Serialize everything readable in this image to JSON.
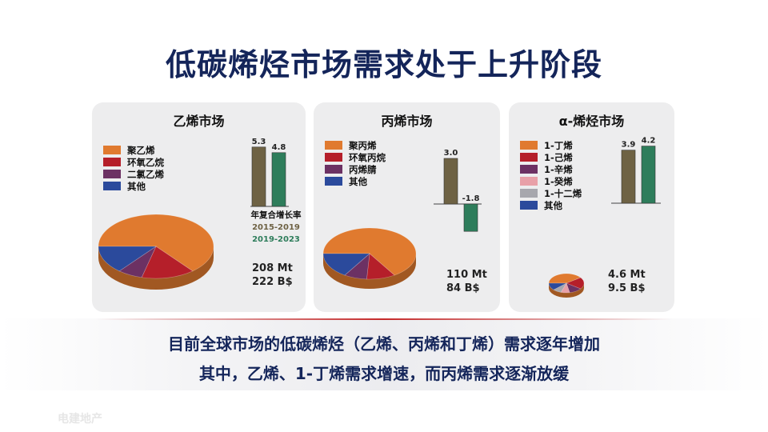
{
  "title": "低碳烯烃市场需求处于上升阶段",
  "summary": {
    "line1": "目前全球市场的低碳烯烃（乙烯、丙烯和丁烯）需求逐年增加",
    "line2": "其中，乙烯、1-丁烯需求增速，而丙烯需求逐渐放缓"
  },
  "watermark": "电建地产",
  "cagr": {
    "title": "年复合增长率",
    "period_a": "2015-2019",
    "period_b": "2019-2023"
  },
  "colors": {
    "period_a": "#6e6244",
    "period_b": "#2e7d5b"
  },
  "chart_data": [
    {
      "type": "pie",
      "title": "乙烯市场",
      "legend": [
        "聚乙烯",
        "环氧乙烷",
        "二氯乙烯",
        "其他"
      ],
      "colors": [
        "#e07a2f",
        "#b51f2a",
        "#6c3163",
        "#2b4a9c"
      ],
      "values": [
        64,
        15,
        7,
        14
      ],
      "totals": [
        "208 Mt",
        "222 B$"
      ],
      "growth": {
        "type": "bar",
        "categories": [
          "2015-2019",
          "2019-2023"
        ],
        "values": [
          5.3,
          4.8
        ],
        "labels": [
          "5.3",
          "4.8"
        ]
      }
    },
    {
      "type": "pie",
      "title": "丙烯市场",
      "legend": [
        "聚丙烯",
        "环氧丙烷",
        "丙烯腈",
        "其他"
      ],
      "colors": [
        "#e07a2f",
        "#b51f2a",
        "#6c3163",
        "#2b4a9c"
      ],
      "values": [
        66,
        10,
        8,
        16
      ],
      "totals": [
        "110 Mt",
        "84 B$"
      ],
      "growth": {
        "type": "bar",
        "categories": [
          "2015-2019",
          "2019-2023"
        ],
        "values": [
          3.0,
          -1.8
        ],
        "labels": [
          "3.0",
          "-1.8"
        ]
      }
    },
    {
      "type": "pie",
      "title": "α-烯烃市场",
      "legend": [
        "1-丁烯",
        "1-己烯",
        "1-辛烯",
        "1-癸烯",
        "1-十二烯",
        "其他"
      ],
      "colors": [
        "#e07a2f",
        "#b51f2a",
        "#6c3163",
        "#e8a0a8",
        "#a7a7ad",
        "#2b4a9c"
      ],
      "values": [
        40,
        20,
        12,
        8,
        8,
        12
      ],
      "totals": [
        "4.6 Mt",
        "9.5 B$"
      ],
      "growth": {
        "type": "bar",
        "categories": [
          "2015-2019",
          "2019-2023"
        ],
        "values": [
          3.9,
          4.2
        ],
        "labels": [
          "3.9",
          "4.2"
        ]
      }
    }
  ]
}
